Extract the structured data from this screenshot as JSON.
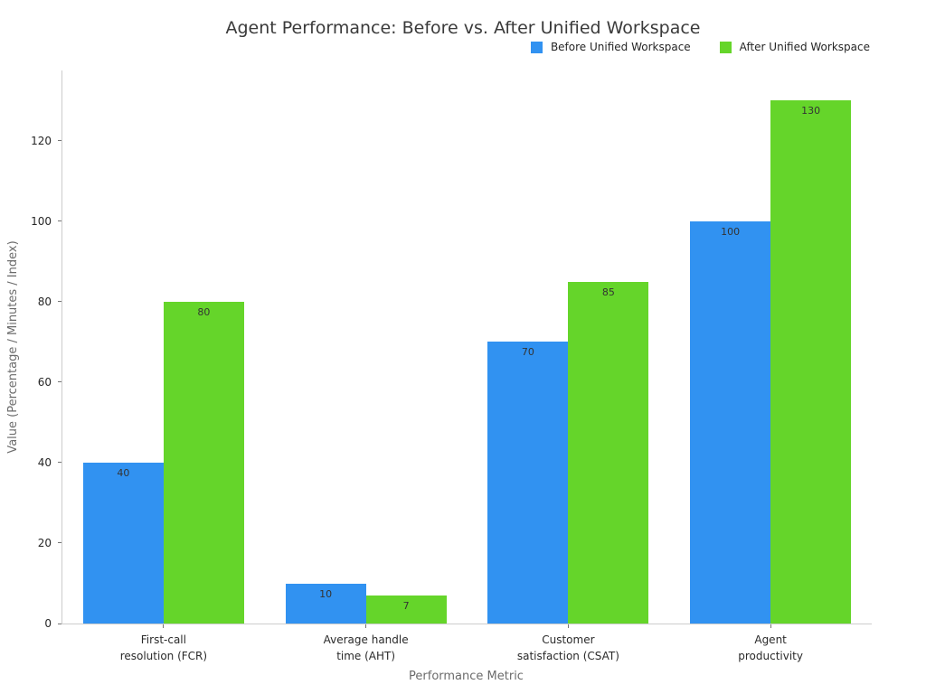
{
  "chart_data": {
    "type": "bar",
    "title": "Agent Performance: Before vs. After Unified Workspace",
    "xlabel": "Performance Metric",
    "ylabel": "Value (Percentage / Minutes / Index)",
    "categories": [
      "First-call\nresolution (FCR)",
      "Average handle\ntime (AHT)",
      "Customer\nsatisfaction (CSAT)",
      "Agent\nproductivity"
    ],
    "series": [
      {
        "name": "Before Unified Workspace",
        "color": "#3192f1",
        "values": [
          40,
          10,
          70,
          100
        ]
      },
      {
        "name": "After Unified Workspace",
        "color": "#65d52a",
        "values": [
          80,
          7,
          85,
          130
        ]
      }
    ],
    "yticks": [
      0,
      20,
      40,
      60,
      80,
      100,
      120
    ],
    "ylim": [
      0,
      137.5
    ],
    "grid": false,
    "legend_position": "top-right",
    "bar_labels": true
  },
  "colors": {
    "spine": "#cccccc",
    "tick": "#767676",
    "text_dark": "#262626",
    "text_gray": "#6b6b6b",
    "title": "#3a3a3a"
  }
}
